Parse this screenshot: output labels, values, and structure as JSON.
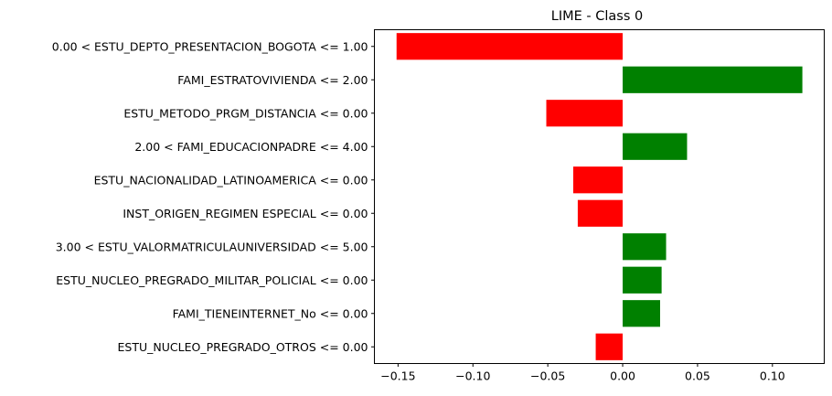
{
  "chart_data": {
    "type": "bar",
    "orientation": "horizontal",
    "title": "LIME - Class 0",
    "xlabel": "",
    "ylabel": "",
    "xlim": [
      -0.1658,
      0.1346
    ],
    "xticks": [
      -0.15,
      -0.1,
      -0.05,
      0.0,
      0.05,
      0.1
    ],
    "xtick_labels": [
      "−0.15",
      "−0.10",
      "−0.05",
      "0.00",
      "0.05",
      "0.10"
    ],
    "grid": false,
    "legend": "none",
    "positive_color": "#008000",
    "negative_color": "#ff0000",
    "categories": [
      "0.00 < ESTU_DEPTO_PRESENTACION_BOGOTA <= 1.00",
      "FAMI_ESTRATOVIVIENDA <= 2.00",
      "ESTU_METODO_PRGM_DISTANCIA <= 0.00",
      "2.00 < FAMI_EDUCACIONPADRE <= 4.00",
      "ESTU_NACIONALIDAD_LATINOAMERICA <= 0.00",
      "INST_ORIGEN_REGIMEN ESPECIAL <= 0.00",
      "3.00 < ESTU_VALORMATRICULAUNIVERSIDAD <= 5.00",
      "ESTU_NUCLEO_PREGRADO_MILITAR_POLICIAL <= 0.00",
      "FAMI_TIENEINTERNET_No <= 0.00",
      "ESTU_NUCLEO_PREGRADO_OTROS <= 0.00"
    ],
    "values": [
      -0.151,
      0.12,
      -0.051,
      0.043,
      -0.033,
      -0.03,
      0.029,
      0.026,
      0.025,
      -0.018
    ]
  }
}
